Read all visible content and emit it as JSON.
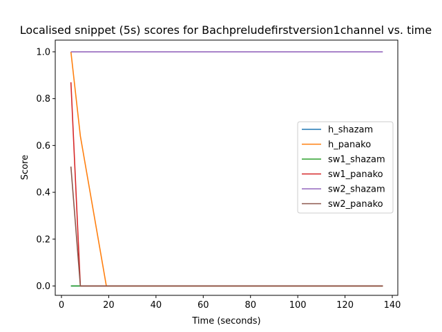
{
  "chart_data": {
    "type": "line",
    "title": "Localised snippet (5s) scores for Bachpreludefirstversion1channel vs. time",
    "xlabel": "Time (seconds)",
    "ylabel": "Score",
    "xlim": [
      0,
      140
    ],
    "ylim": [
      -0.04,
      1.05
    ],
    "xticks": [
      0,
      20,
      40,
      60,
      80,
      100,
      120,
      140
    ],
    "yticks": [
      0.0,
      0.2,
      0.4,
      0.6,
      0.8,
      1.0
    ],
    "xtick_labels": [
      "0",
      "20",
      "40",
      "60",
      "80",
      "100",
      "120",
      "140"
    ],
    "ytick_labels": [
      "0.0",
      "0.2",
      "0.4",
      "0.6",
      "0.8",
      "1.0"
    ],
    "grid": false,
    "legend_position": "center-right",
    "series": [
      {
        "name": "h_shazam",
        "color": "#1f77b4",
        "x": [
          4,
          8,
          19,
          136
        ],
        "y": [
          0,
          0,
          0,
          0
        ]
      },
      {
        "name": "h_panako",
        "color": "#ff7f0e",
        "x": [
          4,
          8,
          19,
          136
        ],
        "y": [
          1.0,
          0.64,
          0,
          0
        ]
      },
      {
        "name": "sw1_shazam",
        "color": "#2ca02c",
        "x": [
          4,
          8,
          19,
          136
        ],
        "y": [
          0,
          0,
          0,
          0
        ]
      },
      {
        "name": "sw1_panako",
        "color": "#d62728",
        "x": [
          4,
          8,
          19,
          136
        ],
        "y": [
          0.87,
          0,
          0,
          0
        ]
      },
      {
        "name": "sw2_shazam",
        "color": "#9467bd",
        "x": [
          4,
          8,
          19,
          136
        ],
        "y": [
          1.0,
          1.0,
          1.0,
          1.0
        ]
      },
      {
        "name": "sw2_panako",
        "color": "#8c564b",
        "x": [
          4,
          8,
          19,
          136
        ],
        "y": [
          0.51,
          0,
          0,
          0
        ]
      }
    ]
  }
}
